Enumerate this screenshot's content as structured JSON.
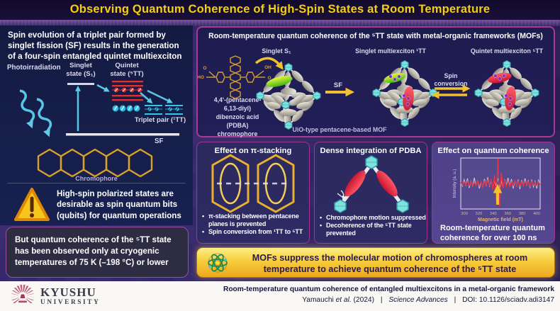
{
  "header": {
    "title": "Observing Quantum Coherence of High-Spin States at Room Temperature"
  },
  "left": {
    "intro_lines": [
      "Spin evolution of a triplet pair formed by",
      "singlet fission (SF) results in the generation",
      "of a four-spin entangled quintet multiexciton"
    ],
    "diagram": {
      "photoirradiation": "Photoirradiation",
      "singlet_lines": [
        "Singlet",
        "state (S₁)"
      ],
      "quintet_lines": [
        "Quintet",
        "state (⁵TT)"
      ],
      "triplet_label": "Triplet pair (¹TT)",
      "sf_label": "SF",
      "chromophore_label": "Chromophore"
    },
    "warning_lines": [
      "High-spin polarized states are",
      "desirable as spin quantum bits",
      "(qubits) for quantum operations"
    ],
    "note_lines": [
      "But quantum coherence of the ⁵TT state",
      "has been observed only at cryogenic",
      "temperatures of 75 K (–198 °C) or lower"
    ]
  },
  "mof": {
    "title": "Room-temperature quantum coherence of the ⁵TT state with metal-organic frameworks (MOFs)",
    "chem_lines": [
      "4,4'-(pentacene-",
      "6,13-diyl)",
      "dibenzoic acid",
      "(PDBA)",
      "chromophore"
    ],
    "atoms": {
      "o1": "O",
      "ho": "HO",
      "oh": "OH",
      "o2": "O"
    },
    "state1": "Singlet S₁",
    "state2": "Singlet multiexciton ¹TT",
    "state3": "Quintet multiexciton ⁵TT",
    "sf": "SF",
    "spin_lines": [
      "Spin",
      "conversion"
    ],
    "caption": "UiO-type pentacene-based MOF"
  },
  "panels": [
    {
      "title": "Effect on π-stacking",
      "bullets": [
        "π-stacking between pentacene planes is prevented",
        "Spin conversion from ¹TT to ⁵TT"
      ]
    },
    {
      "title": "Dense integration of PDBA",
      "bullets": [
        "Chromophore motion suppressed",
        "Decoherence of the ⁵TT state prevented"
      ]
    },
    {
      "title": "Effect on quantum coherence",
      "caption_lines": [
        "Room-temperature quantum",
        "coherence for over 100 ns"
      ]
    }
  ],
  "chart_data": {
    "type": "line",
    "xlabel": "Magnetic field (mT)",
    "ylabel": "Intensity (a. u.)",
    "xlim": [
      295,
      405
    ],
    "xticks": [
      300,
      320,
      340,
      360,
      380,
      400
    ],
    "annotation": "yellow arrow marks room-temperature ⁵TT coherence signal near 345 mT",
    "series": [
      {
        "name": "noise trace",
        "color": "#d9d9ef",
        "values": [
          0.2,
          -0.5,
          0.7,
          -0.3,
          0.9,
          -0.8,
          0.4,
          -0.6,
          1.0,
          -0.4,
          0.6,
          -0.9,
          0.3,
          -0.7,
          0.8,
          -0.5,
          1.1,
          -0.6,
          0.5,
          -1.0,
          0.7,
          -0.4,
          0.9,
          -0.7,
          0.4,
          -0.8,
          0.6,
          -0.3,
          1.0,
          -0.6,
          0.8,
          -0.9,
          0.5,
          -0.4,
          0.7,
          -1.0,
          0.6,
          -0.5,
          0.9,
          -0.3,
          0.5,
          -0.8,
          0.7,
          -0.6,
          0.4,
          -0.9,
          0.6,
          -0.2
        ]
      },
      {
        "name": "signal trace",
        "color": "#e23545",
        "values": [
          0.2,
          -0.3,
          0.3,
          -0.2,
          0.4,
          -0.4,
          0.3,
          -0.5,
          0.2,
          -0.3,
          0.5,
          -0.4,
          0.3,
          -0.6,
          0.4,
          -0.3,
          0.6,
          -0.5,
          0.8,
          -1.2,
          1.5,
          -3.2,
          4.4,
          -4.0,
          2.0,
          -0.9,
          0.6,
          -0.5,
          0.4,
          -0.6,
          0.3,
          -0.4,
          0.5,
          -0.3,
          0.4,
          -0.5,
          0.3,
          -0.4,
          0.4,
          -0.2,
          0.3,
          -0.5,
          0.4,
          -0.3,
          0.2,
          -0.4,
          0.3,
          -0.2
        ]
      }
    ]
  },
  "banner": {
    "lines": [
      "MOFs suppress the molecular motion of chromospheres at room",
      "temperature to achieve quantum coherence of the ⁵TT state"
    ]
  },
  "footer": {
    "kyushu": "KYUSHU",
    "university": "UNIVERSITY",
    "paper_title": "Room-temperature quantum coherence of entangled multiexcitons in a metal-organic framework",
    "cit_pre": "Yamauchi ",
    "cit_etal": "et al.",
    "cit_year": " (2024)",
    "cit_sep1": "|",
    "cit_journal": "Science Advances",
    "cit_sep2": "|",
    "cit_doi": "DOI: 10.1126/sciadv.adi3147"
  },
  "colors": {
    "title_yellow": "#f5cf10",
    "panel_border": "#a83a90",
    "banner_gold": "#f7cd3e",
    "navy_panel": "#151c45",
    "page_purple": "#32265f",
    "signal_red": "#e23545"
  }
}
